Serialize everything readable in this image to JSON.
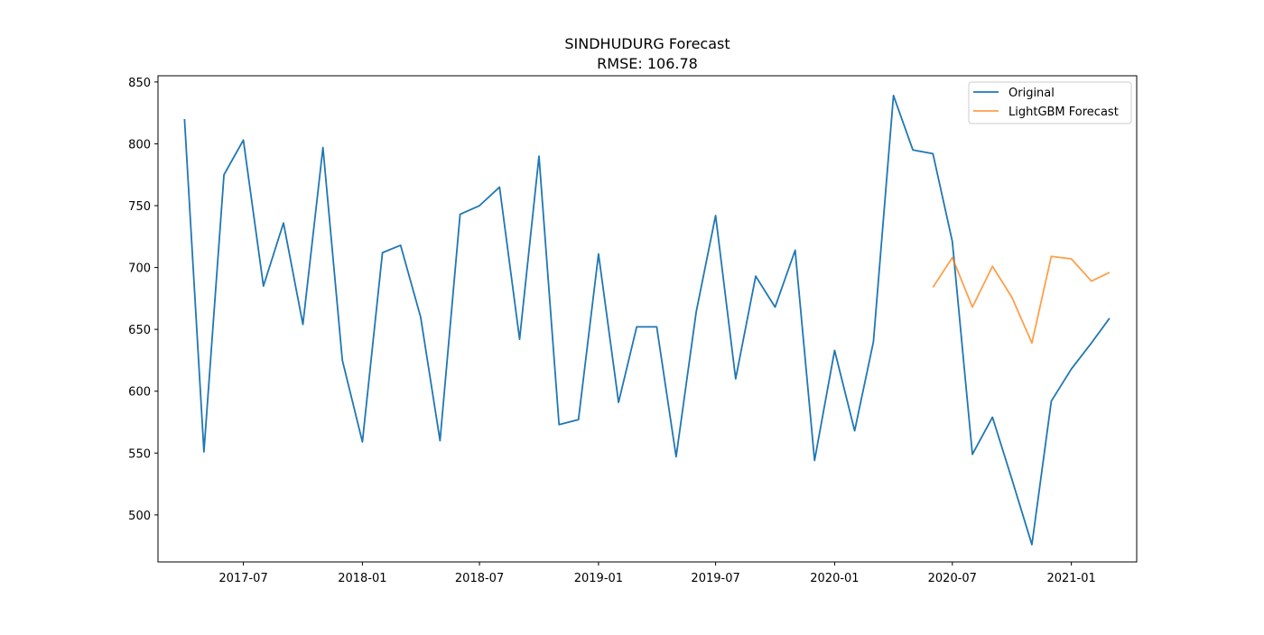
{
  "chart_data": {
    "type": "line",
    "title": "SINDHUDURG Forecast",
    "subtitle": "RMSE: 106.78",
    "xlabel": "",
    "ylabel": "",
    "x_ticks": [
      "2017-07",
      "2018-01",
      "2018-07",
      "2019-01",
      "2019-07",
      "2020-01",
      "2020-07",
      "2021-01"
    ],
    "y_ticks": [
      500,
      550,
      600,
      650,
      700,
      750,
      800,
      850
    ],
    "xlim": [
      "2017-02-19",
      "2021-04-12"
    ],
    "ylim": [
      462,
      855
    ],
    "grid": false,
    "legend_position": "upper right",
    "series": [
      {
        "name": "Original",
        "color": "#1f77b4",
        "x": [
          "2017-04-01",
          "2017-05-01",
          "2017-06-01",
          "2017-07-01",
          "2017-08-01",
          "2017-09-01",
          "2017-10-01",
          "2017-11-01",
          "2017-12-01",
          "2018-01-01",
          "2018-02-01",
          "2018-03-01",
          "2018-04-01",
          "2018-05-01",
          "2018-06-01",
          "2018-07-01",
          "2018-08-01",
          "2018-09-01",
          "2018-10-01",
          "2018-11-01",
          "2018-12-01",
          "2019-01-01",
          "2019-02-01",
          "2019-03-01",
          "2019-04-01",
          "2019-05-01",
          "2019-06-01",
          "2019-07-01",
          "2019-08-01",
          "2019-09-01",
          "2019-10-01",
          "2019-11-01",
          "2019-12-01",
          "2020-01-01",
          "2020-02-01",
          "2020-03-01",
          "2020-04-01",
          "2020-05-01",
          "2020-06-01",
          "2020-07-01",
          "2020-08-01",
          "2020-09-01",
          "2020-10-01",
          "2020-11-01",
          "2020-12-01",
          "2021-01-01",
          "2021-02-01",
          "2021-03-01"
        ],
        "y": [
          820,
          551,
          775,
          803,
          685,
          736,
          654,
          797,
          625,
          559,
          712,
          718,
          660,
          560,
          743,
          750,
          765,
          642,
          790,
          573,
          577,
          711,
          591,
          652,
          652,
          547,
          664,
          742,
          610,
          693,
          668,
          714,
          544,
          633,
          568,
          640,
          839,
          795,
          792,
          721,
          549,
          579,
          529,
          476,
          592,
          618,
          639,
          659
        ]
      },
      {
        "name": "LightGBM Forecast",
        "color": "#ff7f0e",
        "x": [
          "2020-06-01",
          "2020-07-01",
          "2020-08-01",
          "2020-09-01",
          "2020-10-01",
          "2020-11-01",
          "2020-12-01",
          "2021-01-01",
          "2021-02-01",
          "2021-03-01"
        ],
        "y": [
          684,
          708,
          668,
          701,
          676,
          639,
          709,
          707,
          689,
          696
        ]
      }
    ]
  }
}
